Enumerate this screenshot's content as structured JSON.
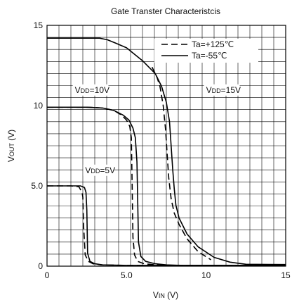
{
  "chart_data": {
    "type": "line",
    "title": "Gate Transter Characteristcis",
    "xlabel": {
      "main": "V",
      "sub": "IN",
      "unit": " (V)"
    },
    "ylabel": {
      "main": "V",
      "sub": "OUT",
      "unit": " (V)"
    },
    "xlim": [
      0,
      15
    ],
    "ylim": [
      0,
      15
    ],
    "xticks": [
      {
        "value": 0,
        "label": "0"
      },
      {
        "value": 5,
        "label": "5.0"
      },
      {
        "value": 10,
        "label": "10"
      },
      {
        "value": 15,
        "label": "15"
      }
    ],
    "yticks": [
      {
        "value": 0,
        "label": "0"
      },
      {
        "value": 5,
        "label": "5.0"
      },
      {
        "value": 10,
        "label": "10"
      },
      {
        "value": 15,
        "label": "15"
      }
    ],
    "grid": true,
    "legend": {
      "placement": "top-right",
      "entries": [
        {
          "style": "dashed",
          "text": "Ta=+125℃"
        },
        {
          "style": "solid",
          "text": "Ta=-55℃"
        }
      ]
    },
    "annotations": [
      {
        "main": "V",
        "sub": "DD",
        "tail": "=10V",
        "x": 1.75,
        "y": 10.8
      },
      {
        "main": "V",
        "sub": "DD",
        "tail": "=15V",
        "x": 10.0,
        "y": 10.8
      },
      {
        "main": "V",
        "sub": "DD",
        "tail": "=5V",
        "x": 2.4,
        "y": 5.8
      }
    ],
    "series": [
      {
        "style": "solid",
        "x": [
          0,
          1.5,
          2.1,
          2.35,
          2.45,
          2.5,
          2.55,
          2.7,
          3.0,
          3.5,
          5.0,
          15
        ],
        "y": [
          5.0,
          5.0,
          5.0,
          4.9,
          4.6,
          3.5,
          0.8,
          0.3,
          0.15,
          0.08,
          0.05,
          0.05
        ]
      },
      {
        "style": "dashed",
        "x": [
          0,
          1.5,
          2.0,
          2.2,
          2.25,
          2.3,
          2.4,
          2.6,
          2.9,
          3.4,
          5.0,
          15
        ],
        "y": [
          5.0,
          5.0,
          4.95,
          4.6,
          4.3,
          2.5,
          0.7,
          0.3,
          0.15,
          0.08,
          0.05,
          0.05
        ]
      },
      {
        "style": "solid",
        "x": [
          0,
          2.5,
          3.5,
          4.2,
          4.8,
          5.15,
          5.4,
          5.55,
          5.65,
          5.7,
          5.75,
          5.9,
          6.2,
          6.8,
          7.5,
          8.5,
          15
        ],
        "y": [
          9.9,
          9.9,
          9.85,
          9.7,
          9.4,
          9.1,
          8.6,
          8.0,
          6.5,
          4.0,
          1.5,
          0.6,
          0.3,
          0.15,
          0.08,
          0.05,
          0.05
        ]
      },
      {
        "style": "dashed",
        "x": [
          0,
          2.5,
          3.5,
          4.2,
          4.7,
          5.0,
          5.2,
          5.3,
          5.35,
          5.4,
          5.5,
          5.7,
          6.1,
          6.8,
          8.0,
          15
        ],
        "y": [
          9.9,
          9.9,
          9.85,
          9.7,
          9.4,
          9.1,
          8.7,
          8.0,
          5.0,
          1.8,
          0.7,
          0.3,
          0.15,
          0.08,
          0.05,
          0.05
        ]
      },
      {
        "style": "solid",
        "x": [
          0,
          2.5,
          3.3,
          3.8,
          4.3,
          5.0,
          6.0,
          6.8,
          7.2,
          7.5,
          7.7,
          7.8,
          7.9,
          8.0,
          8.1,
          8.3,
          8.8,
          9.5,
          10.5,
          11.5,
          12.5,
          15
        ],
        "y": [
          14.2,
          14.2,
          14.2,
          14.1,
          13.9,
          13.6,
          12.8,
          12.0,
          11.2,
          10.2,
          9.0,
          7.5,
          6.0,
          4.8,
          3.8,
          3.0,
          2.0,
          1.2,
          0.55,
          0.25,
          0.12,
          0.1
        ]
      },
      {
        "style": "dashed",
        "x": [
          6.6,
          6.9,
          7.1,
          7.3,
          7.45,
          7.55,
          7.65,
          7.8,
          8.0,
          8.3,
          8.8,
          9.5,
          10.3
        ],
        "y": [
          12.4,
          11.8,
          11.2,
          10.0,
          8.5,
          7.0,
          5.5,
          4.2,
          3.3,
          2.6,
          1.7,
          0.9,
          0.4
        ]
      }
    ]
  }
}
